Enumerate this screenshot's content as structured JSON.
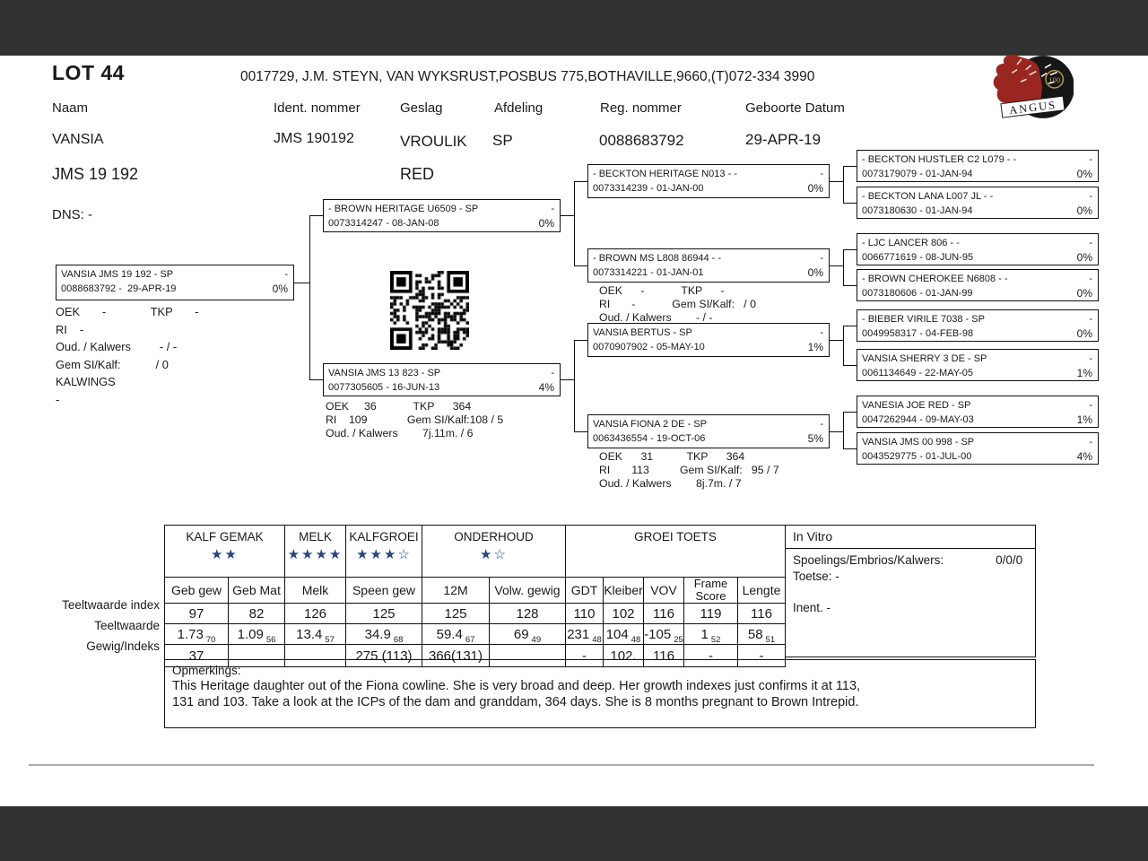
{
  "header": {
    "lot": "LOT 44",
    "breeder_line": "0017729, J.M. STEYN, VAN WYKSRUST,POSBUS 775,BOTHAVILLE,9660,(T)072-334 3990",
    "fields": [
      {
        "label": "Naam",
        "value": "VANSIA"
      },
      {
        "label": "Ident. nommer",
        "value": "JMS 190192"
      },
      {
        "label": "Geslag",
        "value": "VROULIK"
      },
      {
        "label": "Afdeling",
        "value": "SP"
      },
      {
        "label": "Reg. nommer",
        "value": "0088683792"
      },
      {
        "label": "Geboorte Datum",
        "value": "29-APR-19"
      }
    ],
    "ident_short": "JMS 19 192",
    "colour": "RED",
    "dns": "DNS: -",
    "logo_text": "ANGUS",
    "logo_100": "100"
  },
  "pedigree": {
    "subject": {
      "name": "VANSIA JMS 19 192 - SP",
      "epd": "-",
      "reg": "0088683792 -  29-APR-19",
      "inbreed": "0%"
    },
    "subject_stats": [
      "OEK       -              TKP       -",
      "RI    -",
      "Oud. / Kalwers         - / -",
      "Gem SI/Kalf:           / 0",
      "KALWINGS",
      "-"
    ],
    "sire": {
      "name": "- BROWN HERITAGE U6509 - SP",
      "epd": "-",
      "reg": "0073314247 - 08-JAN-08",
      "inbreed": "0%"
    },
    "dam": {
      "name": "VANSIA JMS 13 823 - SP",
      "epd": "-",
      "reg": "0077305605 - 16-JUN-13",
      "inbreed": "4%"
    },
    "dam_stats": [
      "OEK     36            TKP      364",
      "RI    109             Gem SI/Kalf:108 / 5",
      "Oud. / Kalwers        7j.11m. / 6"
    ],
    "gen2": [
      {
        "name": "- BECKTON HERITAGE N013 - -",
        "epd": "-",
        "reg": "0073314239 - 01-JAN-00",
        "inbreed": "0%"
      },
      {
        "name": "- BROWN MS L808 86944 - -",
        "epd": "-",
        "reg": "0073314221 - 01-JAN-01",
        "inbreed": "0%"
      },
      {
        "name": "VANSIA BERTUS - SP",
        "epd": "-",
        "reg": "0070907902 - 05-MAY-10",
        "inbreed": "1%"
      },
      {
        "name": "VANSIA FIONA 2 DE - SP",
        "epd": "-",
        "reg": "0063436554 - 19-OCT-06",
        "inbreed": "5%"
      }
    ],
    "brownms_stats": [
      "OEK      -            TKP      -",
      "RI       -            Gem SI/Kalf:   / 0",
      "Oud. / Kalwers        - / -"
    ],
    "fiona_stats": [
      "OEK      31           TKP      364",
      "RI       113          Gem SI/Kalf:   95 / 7",
      "Oud. / Kalwers        8j.7m. / 7"
    ],
    "gen3": [
      {
        "name": "- BECKTON HUSTLER C2 L079 - -",
        "epd": "-",
        "reg": "0073179079 - 01-JAN-94",
        "inbreed": "0%"
      },
      {
        "name": "- BECKTON LANA L007 JL - -",
        "epd": "-",
        "reg": "0073180630 - 01-JAN-94",
        "inbreed": "0%"
      },
      {
        "name": "- LJC LANCER 806 - -",
        "epd": "-",
        "reg": "0066771619 - 08-JUN-95",
        "inbreed": "0%"
      },
      {
        "name": "- BROWN CHEROKEE N6808 - -",
        "epd": "-",
        "reg": "0073180606 - 01-JAN-99",
        "inbreed": "0%"
      },
      {
        "name": "- BIEBER VIRILE 7038 - SP",
        "epd": "-",
        "reg": "0049958317 - 04-FEB-98",
        "inbreed": "0%"
      },
      {
        "name": "VANSIA SHERRY 3 DE - SP",
        "epd": "-",
        "reg": "0061134649 - 22-MAY-05",
        "inbreed": "1%"
      },
      {
        "name": "VANESIA JOE RED - SP",
        "epd": "-",
        "reg": "0047262944 - 09-MAY-03",
        "inbreed": "1%"
      },
      {
        "name": "VANSIA JMS 00 998 - SP",
        "epd": "-",
        "reg": "0043529775 - 01-JUL-00",
        "inbreed": "4%"
      }
    ]
  },
  "table": {
    "groups": [
      {
        "label": "KALF GEMAK",
        "stars": "★★"
      },
      {
        "label": "MELK",
        "stars": "★★★★"
      },
      {
        "label": "KALFGROEI",
        "stars": "★★★☆"
      },
      {
        "label": "ONDERHOUD",
        "stars": "★☆"
      },
      {
        "label": "GROEI TOETS",
        "stars": ""
      }
    ],
    "columns": [
      "Geb gew",
      "Geb Mat",
      "Melk",
      "Speen gew",
      "12M",
      "Volw. gewig",
      "GDT",
      "Kleiber",
      "VOV",
      "Frame Score",
      "Lengte"
    ],
    "row_labels": [
      "Teeltwaarde index",
      "Teeltwaarde",
      "Gewig/Indeks"
    ],
    "index_row": [
      "97",
      "82",
      "126",
      "125",
      "125",
      "128",
      "110",
      "102",
      "116",
      "119",
      "116"
    ],
    "ebv_row": [
      {
        "v": "1.73",
        "a": "70"
      },
      {
        "v": "1.09",
        "a": "56"
      },
      {
        "v": "13.4",
        "a": "57"
      },
      {
        "v": "34.9",
        "a": "68"
      },
      {
        "v": "59.4",
        "a": "67"
      },
      {
        "v": "69",
        "a": "49"
      },
      {
        "v": "231",
        "a": "48"
      },
      {
        "v": "104",
        "a": "48"
      },
      {
        "v": "-105",
        "a": "25"
      },
      {
        "v": "1",
        "a": "52"
      },
      {
        "v": "58",
        "a": "51"
      }
    ],
    "weight_row": [
      "37",
      "",
      "",
      "275 (113)",
      "366(131)",
      "",
      "-",
      "102.",
      "116",
      "-",
      "-"
    ],
    "invitro": {
      "title": "In Vitro",
      "line1_label": "Spoelings/Embrios/Kalwers:",
      "line1_value": "0/0/0",
      "line2": "Toetse: -",
      "line3": "Inent. -"
    }
  },
  "remarks": {
    "title": "Opmerkings:",
    "line1": "This Heritage daughter out of the Fiona cowline. She is very broad and deep. Her growth indexes just confirms it at 113,",
    "line2": "131 and 103. Take a look at the ICPs of the dam and granddam, 364 days. She is 8 months pregnant to Brown Intrepid."
  },
  "colors": {
    "star_blue": "#2d4577",
    "bar_dark": "#323232",
    "logo_red": "#992620",
    "logo_black": "#161616",
    "logo_gold": "#b89a4e"
  }
}
